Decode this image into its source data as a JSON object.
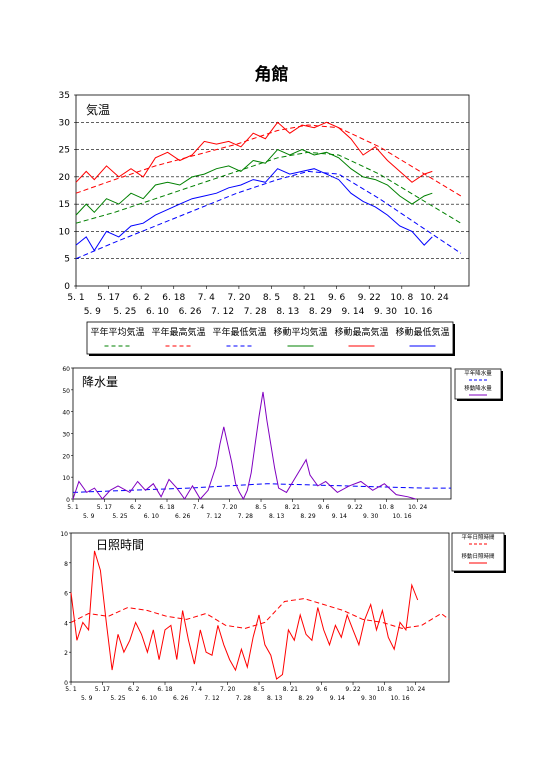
{
  "page": {
    "title": "角館"
  },
  "chart_data": [
    {
      "type": "line",
      "title": "気温",
      "ylim": [
        0,
        35
      ],
      "yticks": [
        0,
        5,
        10,
        15,
        20,
        25,
        30,
        35
      ],
      "grid": "horizontal dashed at 5, 10, 15, 20, 25, 30",
      "x_ticks_row1": [
        "5. 1",
        "5. 17",
        "6. 2",
        "6. 18",
        "7. 4",
        "7. 20",
        "8. 5",
        "8. 21",
        "9. 6",
        "9. 22",
        "10. 8",
        "10. 24"
      ],
      "x_ticks_row2": [
        "5. 9",
        "5. 25",
        "6. 10",
        "6. 26",
        "7. 12",
        "7. 28",
        "8. 13",
        "8. 29",
        "9. 14",
        "9. 30",
        "10. 16"
      ],
      "legend_position": "bottom",
      "series": [
        {
          "name": "平年平均気温",
          "color": "#008000",
          "style": "dashed",
          "x": [
            1,
            20,
            40,
            60,
            80,
            100,
            115,
            130,
            150,
            170,
            190
          ],
          "y": [
            11.5,
            13.5,
            16.0,
            18.5,
            21.0,
            23.5,
            24.5,
            24.0,
            20.5,
            16.0,
            11.5
          ]
        },
        {
          "name": "平年最高気温",
          "color": "#ff0000",
          "style": "dashed",
          "x": [
            1,
            20,
            40,
            60,
            80,
            100,
            115,
            130,
            150,
            170,
            190
          ],
          "y": [
            17.0,
            19.5,
            22.0,
            24.0,
            26.0,
            28.5,
            29.5,
            29.0,
            25.5,
            21.0,
            16.5
          ]
        },
        {
          "name": "平年最低気温",
          "color": "#0000ff",
          "style": "dashed",
          "x": [
            1,
            20,
            40,
            60,
            80,
            100,
            115,
            130,
            150,
            170,
            190
          ],
          "y": [
            5.0,
            8.0,
            11.0,
            14.0,
            17.0,
            19.5,
            21.0,
            20.5,
            16.0,
            11.0,
            6.0
          ]
        },
        {
          "name": "移動平均気温",
          "color": "#008000",
          "style": "solid",
          "x": [
            1,
            6,
            10,
            16,
            22,
            28,
            34,
            40,
            46,
            52,
            58,
            64,
            70,
            76,
            82,
            88,
            94,
            100,
            106,
            112,
            118,
            124,
            130,
            136,
            142,
            148,
            154,
            160,
            166,
            172,
            176
          ],
          "y": [
            13,
            15,
            13.5,
            16,
            15,
            17,
            16,
            18.5,
            19,
            18.5,
            20,
            20.5,
            21.5,
            22,
            21,
            23,
            22.5,
            25,
            24,
            25,
            24,
            24.5,
            23.5,
            21.5,
            20,
            19.5,
            18.5,
            16.5,
            15,
            16.5,
            17
          ]
        },
        {
          "name": "移動最高気温",
          "color": "#ff0000",
          "style": "solid",
          "x": [
            1,
            6,
            10,
            16,
            22,
            28,
            34,
            40,
            46,
            52,
            58,
            64,
            70,
            76,
            82,
            88,
            94,
            100,
            106,
            112,
            118,
            124,
            130,
            136,
            142,
            148,
            154,
            160,
            166,
            172,
            176
          ],
          "y": [
            19,
            21,
            19.5,
            22,
            20,
            21.5,
            20,
            23.5,
            24.5,
            23,
            24,
            26.5,
            26,
            26.5,
            25.5,
            28,
            27,
            30,
            28,
            29.5,
            29,
            30,
            29,
            27,
            24,
            25.5,
            23,
            21,
            19,
            20.5,
            21
          ]
        },
        {
          "name": "移動最低気温",
          "color": "#0000ff",
          "style": "solid",
          "x": [
            1,
            6,
            10,
            16,
            22,
            28,
            34,
            40,
            46,
            52,
            58,
            64,
            70,
            76,
            82,
            88,
            94,
            100,
            106,
            112,
            118,
            124,
            130,
            136,
            142,
            148,
            154,
            160,
            166,
            172,
            176
          ],
          "y": [
            7.5,
            9,
            6.5,
            10,
            9,
            11,
            11.5,
            13,
            14,
            15,
            16,
            16.5,
            17,
            18,
            18.5,
            19.5,
            19,
            21.5,
            20.5,
            21,
            21.5,
            20.5,
            19.5,
            17,
            15.5,
            14.5,
            13,
            11,
            10,
            7.5,
            9
          ]
        }
      ]
    },
    {
      "type": "line",
      "title": "降水量",
      "ylim": [
        0,
        60
      ],
      "yticks": [
        0,
        10,
        20,
        30,
        40,
        50,
        60
      ],
      "x_ticks_row1": [
        "5. 1",
        "5. 17",
        "6. 2",
        "6. 18",
        "7. 4",
        "7. 20",
        "8. 5",
        "8. 21",
        "9. 6",
        "9. 22",
        "10. 8",
        "10. 24"
      ],
      "x_ticks_row2": [
        "5. 9",
        "5. 25",
        "6. 10",
        "6. 26",
        "7. 12",
        "7. 28",
        "8. 13",
        "8. 29",
        "9. 14",
        "9. 30",
        "10. 16"
      ],
      "legend_position": "right",
      "series": [
        {
          "name": "平年降水量",
          "color": "#0000ff",
          "style": "dashed",
          "x": [
            1,
            30,
            60,
            80,
            100,
            120,
            140,
            160,
            180,
            194
          ],
          "y": [
            3,
            4,
            5,
            6,
            7,
            6.5,
            6,
            5.5,
            5,
            5
          ]
        },
        {
          "name": "移動降水量",
          "color": "#8000c0",
          "style": "solid",
          "x": [
            1,
            4,
            8,
            12,
            16,
            20,
            24,
            30,
            34,
            38,
            42,
            46,
            50,
            54,
            58,
            62,
            66,
            70,
            74,
            76,
            78,
            80,
            82,
            84,
            86,
            88,
            90,
            92,
            94,
            96,
            98,
            100,
            102,
            104,
            106,
            110,
            114,
            118,
            120,
            122,
            126,
            130,
            136,
            142,
            148,
            154,
            160,
            166,
            172,
            176
          ],
          "y": [
            0,
            8,
            3,
            5,
            0,
            4,
            6,
            3,
            8,
            4,
            7,
            1,
            9,
            5,
            0,
            6,
            0,
            4,
            15,
            25,
            33,
            25,
            17,
            7,
            3,
            0,
            4,
            12,
            25,
            38,
            49,
            36,
            25,
            14,
            5,
            3,
            9,
            15,
            18,
            11,
            6,
            8,
            3,
            6,
            8,
            4,
            7,
            2,
            1,
            0
          ]
        }
      ]
    },
    {
      "type": "line",
      "title": "日照時間",
      "ylim": [
        0,
        10
      ],
      "yticks": [
        0,
        2,
        4,
        6,
        8,
        10
      ],
      "x_ticks_row1": [
        "5. 1",
        "5. 17",
        "6. 2",
        "6. 18",
        "7. 4",
        "7. 20",
        "8. 5",
        "8. 21",
        "9. 6",
        "9. 22",
        "10. 8",
        "10. 24"
      ],
      "x_ticks_row2": [
        "5. 9",
        "5. 25",
        "6. 10",
        "6. 26",
        "7. 12",
        "7. 28",
        "8. 13",
        "8. 29",
        "9. 14",
        "9. 30",
        "10. 16"
      ],
      "legend_position": "right",
      "series": [
        {
          "name": "平年日照時間",
          "color": "#ff0000",
          "style": "dashed",
          "x": [
            1,
            10,
            20,
            30,
            40,
            50,
            60,
            70,
            80,
            90,
            100,
            110,
            120,
            130,
            140,
            150,
            160,
            170,
            180,
            190,
            194
          ],
          "y": [
            4.0,
            4.6,
            4.4,
            5.0,
            4.8,
            4.4,
            4.2,
            4.6,
            3.8,
            3.6,
            4.0,
            5.4,
            5.6,
            5.2,
            4.8,
            4.2,
            4.0,
            3.6,
            3.8,
            4.6,
            4.2
          ]
        },
        {
          "name": "移動日照時間",
          "color": "#ff0000",
          "style": "solid",
          "x": [
            1,
            4,
            7,
            10,
            13,
            16,
            19,
            22,
            25,
            28,
            31,
            34,
            37,
            40,
            43,
            46,
            49,
            52,
            55,
            58,
            61,
            64,
            67,
            70,
            73,
            76,
            79,
            82,
            85,
            88,
            91,
            94,
            97,
            100,
            103,
            106,
            109,
            112,
            115,
            118,
            121,
            124,
            127,
            130,
            133,
            136,
            139,
            142,
            145,
            148,
            151,
            154,
            157,
            160,
            163,
            166,
            169,
            172,
            175,
            178
          ],
          "y": [
            6.0,
            2.8,
            4.0,
            3.5,
            8.8,
            7.5,
            4.0,
            0.8,
            3.2,
            2.0,
            2.8,
            4.0,
            3.2,
            2.0,
            3.5,
            1.5,
            3.5,
            3.8,
            1.5,
            4.8,
            2.8,
            1.2,
            3.5,
            2.0,
            1.8,
            3.8,
            2.5,
            1.5,
            0.8,
            2.2,
            1.0,
            3.0,
            4.5,
            2.5,
            1.8,
            0.2,
            0.5,
            3.5,
            2.8,
            4.5,
            3.2,
            2.8,
            5.0,
            3.5,
            2.5,
            3.8,
            3.0,
            4.5,
            3.5,
            2.5,
            4.2,
            5.2,
            3.5,
            4.8,
            3.0,
            2.2,
            4.0,
            3.5,
            6.5,
            5.5
          ]
        }
      ]
    }
  ]
}
